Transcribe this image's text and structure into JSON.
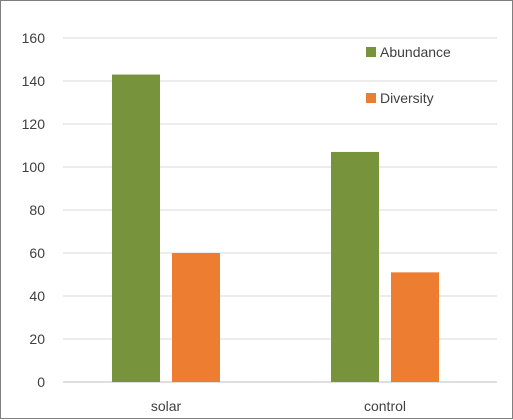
{
  "chart_data": {
    "type": "bar",
    "categories": [
      "solar",
      "control"
    ],
    "series": [
      {
        "name": "Abundance",
        "values": [
          143,
          107
        ],
        "color": "#77933c"
      },
      {
        "name": "Diversity",
        "values": [
          60,
          51
        ],
        "color": "#ed7d31"
      }
    ],
    "ylim": [
      0,
      160
    ],
    "yticks": [
      0,
      20,
      40,
      60,
      80,
      100,
      120,
      140,
      160
    ],
    "grid": true,
    "legend_position": "top-right",
    "title": "",
    "xlabel": "",
    "ylabel": ""
  }
}
